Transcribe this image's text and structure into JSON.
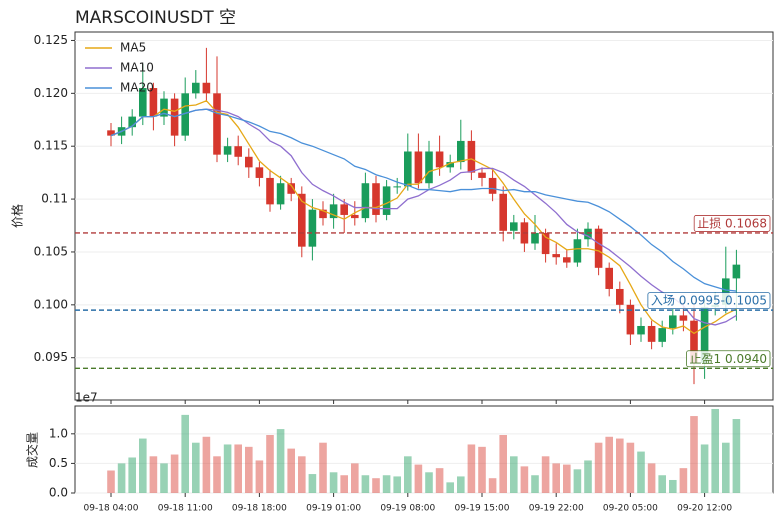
{
  "chart_data": {
    "type": "candlestick",
    "title": "MARSCOINUSDT  空",
    "ylabel": "价格",
    "volume_ylabel": "成交量",
    "volume_offset_label": "1e7",
    "up_color": "#1a9c5b",
    "down_color": "#d6372d",
    "legend": "upper left",
    "grid": true,
    "x": [
      "09-18 04:00",
      "09-18 05:00",
      "09-18 06:00",
      "09-18 07:00",
      "09-18 08:00",
      "09-18 09:00",
      "09-18 10:00",
      "09-18 11:00",
      "09-18 12:00",
      "09-18 13:00",
      "09-18 14:00",
      "09-18 15:00",
      "09-18 16:00",
      "09-18 17:00",
      "09-18 18:00",
      "09-18 19:00",
      "09-18 20:00",
      "09-18 21:00",
      "09-18 22:00",
      "09-18 23:00",
      "09-19 00:00",
      "09-19 01:00",
      "09-19 02:00",
      "09-19 03:00",
      "09-19 04:00",
      "09-19 05:00",
      "09-19 06:00",
      "09-19 07:00",
      "09-19 08:00",
      "09-19 09:00",
      "09-19 10:00",
      "09-19 11:00",
      "09-19 12:00",
      "09-19 13:00",
      "09-19 14:00",
      "09-19 15:00",
      "09-19 16:00",
      "09-19 17:00",
      "09-19 18:00",
      "09-19 19:00",
      "09-19 20:00",
      "09-19 21:00",
      "09-19 22:00",
      "09-19 23:00",
      "09-20 00:00",
      "09-20 01:00",
      "09-20 02:00",
      "09-20 03:00",
      "09-20 04:00",
      "09-20 05:00",
      "09-20 06:00",
      "09-20 07:00",
      "09-20 08:00",
      "09-20 09:00",
      "09-20 10:00",
      "09-20 11:00",
      "09-20 12:00",
      "09-20 13:00",
      "09-20 14:00",
      "09-20 15:00"
    ],
    "xticks": [
      "09-18 04:00",
      "09-18 11:00",
      "09-18 18:00",
      "09-19 01:00",
      "09-19 08:00",
      "09-19 15:00",
      "09-19 22:00",
      "09-20 05:00",
      "09-20 12:00"
    ],
    "open": [
      0.1165,
      0.116,
      0.1168,
      0.1178,
      0.1205,
      0.1178,
      0.1195,
      0.116,
      0.12,
      0.121,
      0.12,
      0.1142,
      0.115,
      0.114,
      0.113,
      0.112,
      0.1095,
      0.1115,
      0.1105,
      0.1055,
      0.109,
      0.1082,
      0.1095,
      0.1085,
      0.1082,
      0.1115,
      0.1085,
      0.1112,
      0.1112,
      0.1145,
      0.1115,
      0.1145,
      0.113,
      0.1135,
      0.1155,
      0.1125,
      0.112,
      0.1105,
      0.107,
      0.1078,
      0.1058,
      0.1068,
      0.1048,
      0.1045,
      0.104,
      0.1062,
      0.1072,
      0.1035,
      0.1015,
      0.1,
      0.0972,
      0.098,
      0.0965,
      0.0978,
      0.099,
      0.0985,
      0.0945,
      0.0998,
      0.1,
      0.1025
    ],
    "high": [
      0.1172,
      0.1178,
      0.1185,
      0.1228,
      0.121,
      0.1202,
      0.12,
      0.1215,
      0.1222,
      0.1243,
      0.1235,
      0.1158,
      0.116,
      0.1148,
      0.1135,
      0.1128,
      0.1122,
      0.112,
      0.1112,
      0.11,
      0.1098,
      0.1105,
      0.11,
      0.1098,
      0.1125,
      0.1122,
      0.1118,
      0.112,
      0.1162,
      0.1162,
      0.1155,
      0.116,
      0.1142,
      0.1175,
      0.1165,
      0.113,
      0.1128,
      0.1112,
      0.1085,
      0.1082,
      0.1085,
      0.1072,
      0.1058,
      0.1052,
      0.1072,
      0.1078,
      0.1075,
      0.104,
      0.1022,
      0.1005,
      0.0988,
      0.0985,
      0.0985,
      0.0996,
      0.1002,
      0.1,
      0.1005,
      0.1012,
      0.1055,
      0.1052
    ],
    "low": [
      0.115,
      0.1152,
      0.116,
      0.117,
      0.1165,
      0.117,
      0.115,
      0.1155,
      0.1195,
      0.1192,
      0.1135,
      0.1135,
      0.1132,
      0.112,
      0.1112,
      0.1088,
      0.109,
      0.1098,
      0.1045,
      0.1042,
      0.1075,
      0.1072,
      0.1068,
      0.1075,
      0.1078,
      0.1078,
      0.108,
      0.1105,
      0.1108,
      0.111,
      0.111,
      0.1122,
      0.1125,
      0.1128,
      0.1118,
      0.1112,
      0.1098,
      0.106,
      0.1062,
      0.105,
      0.1052,
      0.104,
      0.1038,
      0.1035,
      0.1036,
      0.1055,
      0.1028,
      0.1008,
      0.0992,
      0.0962,
      0.0965,
      0.0958,
      0.096,
      0.0972,
      0.0975,
      0.0925,
      0.093,
      0.099,
      0.0992,
      0.0985
    ],
    "close": [
      0.116,
      0.1168,
      0.1178,
      0.1205,
      0.1178,
      0.1195,
      0.116,
      0.12,
      0.121,
      0.12,
      0.1142,
      0.115,
      0.114,
      0.113,
      0.112,
      0.1095,
      0.1115,
      0.1105,
      0.1055,
      0.109,
      0.1082,
      0.1095,
      0.1085,
      0.1082,
      0.1115,
      0.1085,
      0.1112,
      0.1112,
      0.1145,
      0.1115,
      0.1145,
      0.113,
      0.1135,
      0.1155,
      0.1125,
      0.112,
      0.1105,
      0.107,
      0.1078,
      0.1058,
      0.1068,
      0.1048,
      0.1045,
      0.104,
      0.1062,
      0.1072,
      0.1035,
      0.1015,
      0.1,
      0.0972,
      0.098,
      0.0965,
      0.0978,
      0.099,
      0.0985,
      0.0945,
      0.0998,
      0.1,
      0.1025,
      0.1038
    ],
    "volume": [
      0.38,
      0.5,
      0.6,
      0.92,
      0.62,
      0.5,
      0.65,
      1.32,
      0.85,
      0.95,
      0.62,
      0.82,
      0.82,
      0.78,
      0.55,
      0.98,
      1.08,
      0.75,
      0.62,
      0.32,
      0.85,
      0.35,
      0.3,
      0.5,
      0.3,
      0.25,
      0.3,
      0.28,
      0.62,
      0.48,
      0.35,
      0.42,
      0.18,
      0.28,
      0.82,
      0.78,
      0.25,
      0.98,
      0.62,
      0.45,
      0.3,
      0.62,
      0.5,
      0.48,
      0.4,
      0.55,
      0.85,
      0.95,
      0.92,
      0.85,
      0.7,
      0.5,
      0.3,
      0.22,
      0.42,
      1.3,
      0.82,
      1.42,
      0.85,
      1.25
    ],
    "series": [
      {
        "name": "MA5",
        "color": "#e6a817",
        "values": [
          0.116,
          0.1164,
          0.1169,
          0.1178,
          0.1178,
          0.1185,
          0.1183,
          0.1188,
          0.1189,
          0.1193,
          0.1182,
          0.118,
          0.1168,
          0.1152,
          0.1136,
          0.1127,
          0.112,
          0.1113,
          0.1098,
          0.1092,
          0.1089,
          0.1085,
          0.1081,
          0.1087,
          0.1092,
          0.1092,
          0.1096,
          0.1101,
          0.1114,
          0.1114,
          0.1126,
          0.1129,
          0.1134,
          0.1136,
          0.1138,
          0.1133,
          0.1128,
          0.1115,
          0.11,
          0.1086,
          0.1076,
          0.1064,
          0.1059,
          0.1052,
          0.1053,
          0.1053,
          0.1051,
          0.1045,
          0.1037,
          0.1019,
          0.1,
          0.0986,
          0.0979,
          0.0977,
          0.098,
          0.0973,
          0.0979,
          0.0984,
          0.0991,
          0.0996
        ]
      },
      {
        "name": "MA10",
        "color": "#8f6fcf",
        "values": [
          0.116,
          0.1164,
          0.1169,
          0.1178,
          0.1178,
          0.1181,
          0.1178,
          0.1181,
          0.1184,
          0.1185,
          0.1184,
          0.1182,
          0.1178,
          0.1171,
          0.1165,
          0.1155,
          0.115,
          0.1141,
          0.1125,
          0.1114,
          0.1108,
          0.1103,
          0.1097,
          0.1092,
          0.1092,
          0.1091,
          0.1091,
          0.1091,
          0.11,
          0.1103,
          0.1109,
          0.1113,
          0.1118,
          0.1125,
          0.1126,
          0.1129,
          0.1129,
          0.1125,
          0.1118,
          0.1112,
          0.1104,
          0.1096,
          0.1087,
          0.1076,
          0.1069,
          0.1065,
          0.1058,
          0.1052,
          0.1044,
          0.1036,
          0.1027,
          0.1019,
          0.1012,
          0.1007,
          0.0999,
          0.0987,
          0.0983,
          0.0981,
          0.0984,
          0.099
        ]
      },
      {
        "name": "MA20",
        "color": "#4a90d9",
        "values": [
          0.116,
          0.1164,
          0.1169,
          0.1178,
          0.1178,
          0.1181,
          0.1178,
          0.1181,
          0.1184,
          0.1185,
          0.1181,
          0.1179,
          0.1176,
          0.1173,
          0.1169,
          0.1164,
          0.1162,
          0.1158,
          0.1153,
          0.115,
          0.1146,
          0.1142,
          0.1138,
          0.1131,
          0.1128,
          0.1123,
          0.112,
          0.1116,
          0.1113,
          0.1109,
          0.1109,
          0.1108,
          0.1107,
          0.1109,
          0.1109,
          0.111,
          0.111,
          0.1108,
          0.1109,
          0.1107,
          0.1107,
          0.1104,
          0.1102,
          0.11,
          0.1098,
          0.1097,
          0.1093,
          0.1088,
          0.1081,
          0.1074,
          0.1066,
          0.1057,
          0.105,
          0.1041,
          0.1034,
          0.1026,
          0.102,
          0.1017,
          0.1014,
          0.1013
        ]
      }
    ],
    "hlines": [
      {
        "value": 0.1068,
        "label": "止损 0.1068",
        "color": "#b03a3a"
      },
      {
        "value": 0.0995,
        "label": "入场 0.0995-0.1005",
        "color": "#2a6fa8"
      },
      {
        "value": 0.094,
        "label": "止盈1 0.0940",
        "color": "#4a7a2a"
      }
    ],
    "ylim": [
      0.091,
      0.1258
    ],
    "yticks": [
      0.095,
      {
        "value": 0.1,
        "label": "0.100"
      },
      0.105,
      0.11,
      0.115,
      {
        "value": 0.12,
        "label": "0.120"
      },
      0.125
    ],
    "volume_ylim": [
      0,
      1.47
    ],
    "volume_yticks": [
      {
        "value": 0,
        "label": "0.0"
      },
      0.5,
      {
        "value": 1,
        "label": "1.0"
      }
    ]
  }
}
